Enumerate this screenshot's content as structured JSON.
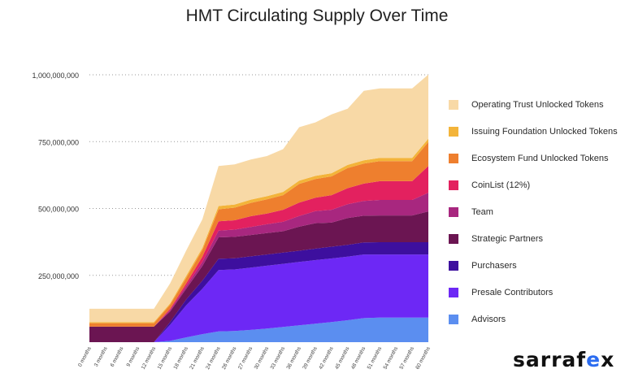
{
  "chart_data": {
    "type": "area",
    "stacked": true,
    "title": "HMT Circulating Supply Over Time",
    "xlabel": "",
    "ylabel": "",
    "ylim": [
      0,
      1000000000
    ],
    "y_ticks": [
      {
        "value": 250000000,
        "label": "250,000,000"
      },
      {
        "value": 500000000,
        "label": "500,000,000"
      },
      {
        "value": 750000000,
        "label": "750,000,000"
      },
      {
        "value": 1000000000,
        "label": "1,000,000,000"
      }
    ],
    "grid": "horizontal dotted",
    "legend_position": "right",
    "x": [
      "0 months",
      "3 months",
      "6 months",
      "9 months",
      "12 months",
      "15 months",
      "18 months",
      "21 months",
      "24 months",
      "26 months",
      "27 months",
      "30 months",
      "33 months",
      "36 months",
      "39 months",
      "42 months",
      "45 months",
      "48 months",
      "51 months",
      "54 months",
      "57 months",
      "60 months"
    ],
    "series": [
      {
        "name": "Advisors",
        "color": "#5b8ef0",
        "values": [
          0,
          0,
          0,
          0,
          0,
          5000000,
          18000000,
          30000000,
          40000000,
          42000000,
          46000000,
          51000000,
          57000000,
          63000000,
          69000000,
          75000000,
          82000000,
          90000000,
          92000000,
          92000000,
          92000000,
          92000000
        ]
      },
      {
        "name": "Presale Contributors",
        "color": "#6d28f5",
        "values": [
          0,
          0,
          0,
          0,
          0,
          60000000,
          120000000,
          170000000,
          230000000,
          230000000,
          233000000,
          235000000,
          236000000,
          237000000,
          238000000,
          238000000,
          238000000,
          238000000,
          236000000,
          236000000,
          236000000,
          236000000
        ]
      },
      {
        "name": "Purchasers",
        "color": "#3d0f9e",
        "values": [
          0,
          0,
          0,
          0,
          0,
          10000000,
          22000000,
          30000000,
          42000000,
          42000000,
          42000000,
          42000000,
          42000000,
          42000000,
          43000000,
          44000000,
          44000000,
          45000000,
          46000000,
          46000000,
          46000000,
          46000000
        ]
      },
      {
        "name": "Strategic Partners",
        "color": "#6b1552",
        "values": [
          58000000,
          58000000,
          58000000,
          58000000,
          58000000,
          40000000,
          40000000,
          55000000,
          80000000,
          80000000,
          80000000,
          80000000,
          80000000,
          90000000,
          95000000,
          90000000,
          100000000,
          100000000,
          100000000,
          100000000,
          100000000,
          115000000
        ]
      },
      {
        "name": "Team",
        "color": "#a8277f",
        "values": [
          0,
          0,
          0,
          0,
          0,
          5000000,
          10000000,
          15000000,
          25000000,
          27000000,
          30000000,
          33000000,
          35000000,
          40000000,
          45000000,
          48000000,
          52000000,
          55000000,
          58000000,
          58000000,
          58000000,
          70000000
        ]
      },
      {
        "name": "CoinList (12%)",
        "color": "#e3215f",
        "values": [
          0,
          0,
          0,
          0,
          0,
          5000000,
          10000000,
          20000000,
          35000000,
          35000000,
          40000000,
          40000000,
          45000000,
          50000000,
          50000000,
          55000000,
          60000000,
          65000000,
          70000000,
          70000000,
          70000000,
          100000000
        ]
      },
      {
        "name": "Ecosystem Fund Unlocked Tokens",
        "color": "#ee7f2e",
        "values": [
          13000000,
          13000000,
          13000000,
          13000000,
          13000000,
          15000000,
          20000000,
          25000000,
          45000000,
          47000000,
          50000000,
          53000000,
          55000000,
          70000000,
          70000000,
          70000000,
          75000000,
          75000000,
          75000000,
          75000000,
          75000000,
          90000000
        ]
      },
      {
        "name": "Issuing Foundation Unlocked Tokens",
        "color": "#f3b43a",
        "values": [
          4000000,
          4000000,
          4000000,
          4000000,
          4000000,
          5000000,
          8000000,
          8000000,
          12000000,
          12000000,
          12000000,
          12000000,
          12000000,
          12000000,
          12000000,
          12000000,
          12000000,
          12000000,
          12000000,
          12000000,
          12000000,
          12000000
        ]
      },
      {
        "name": "Operating Trust Unlocked Tokens",
        "color": "#f8d9a6",
        "values": [
          50000000,
          50000000,
          50000000,
          50000000,
          50000000,
          75000000,
          95000000,
          107000000,
          150000000,
          150000000,
          150000000,
          150000000,
          160000000,
          200000000,
          200000000,
          220000000,
          210000000,
          260000000,
          260000000,
          260000000,
          260000000,
          240000000
        ]
      }
    ]
  },
  "brand": {
    "logo_text_start": "sarraf",
    "logo_text_x": "e",
    "logo_text_end": "x"
  }
}
